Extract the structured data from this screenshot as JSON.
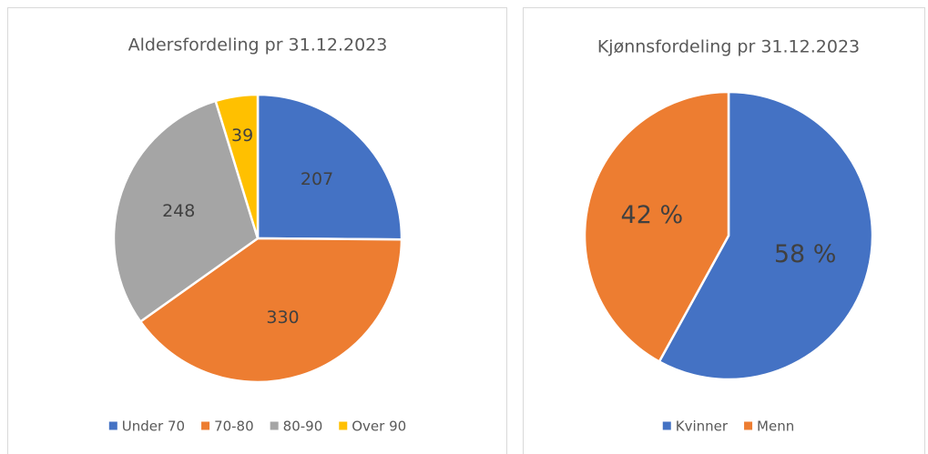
{
  "chart_data": [
    {
      "type": "pie",
      "title": "Aldersfordeling  pr 31.12.2023",
      "categories": [
        "Under 70",
        "70-80",
        "80-90",
        "Over 90"
      ],
      "values": [
        207,
        330,
        248,
        39
      ],
      "colors": [
        "#4472c4",
        "#ed7d31",
        "#a5a5a5",
        "#ffc000"
      ]
    },
    {
      "type": "pie",
      "title": "Kjønnsfordeling pr 31.12.2023",
      "categories": [
        "Kvinner",
        "Menn"
      ],
      "values": [
        58,
        42
      ],
      "value_labels": [
        "58 %",
        "42 %"
      ],
      "colors": [
        "#4472c4",
        "#ed7d31"
      ]
    }
  ]
}
